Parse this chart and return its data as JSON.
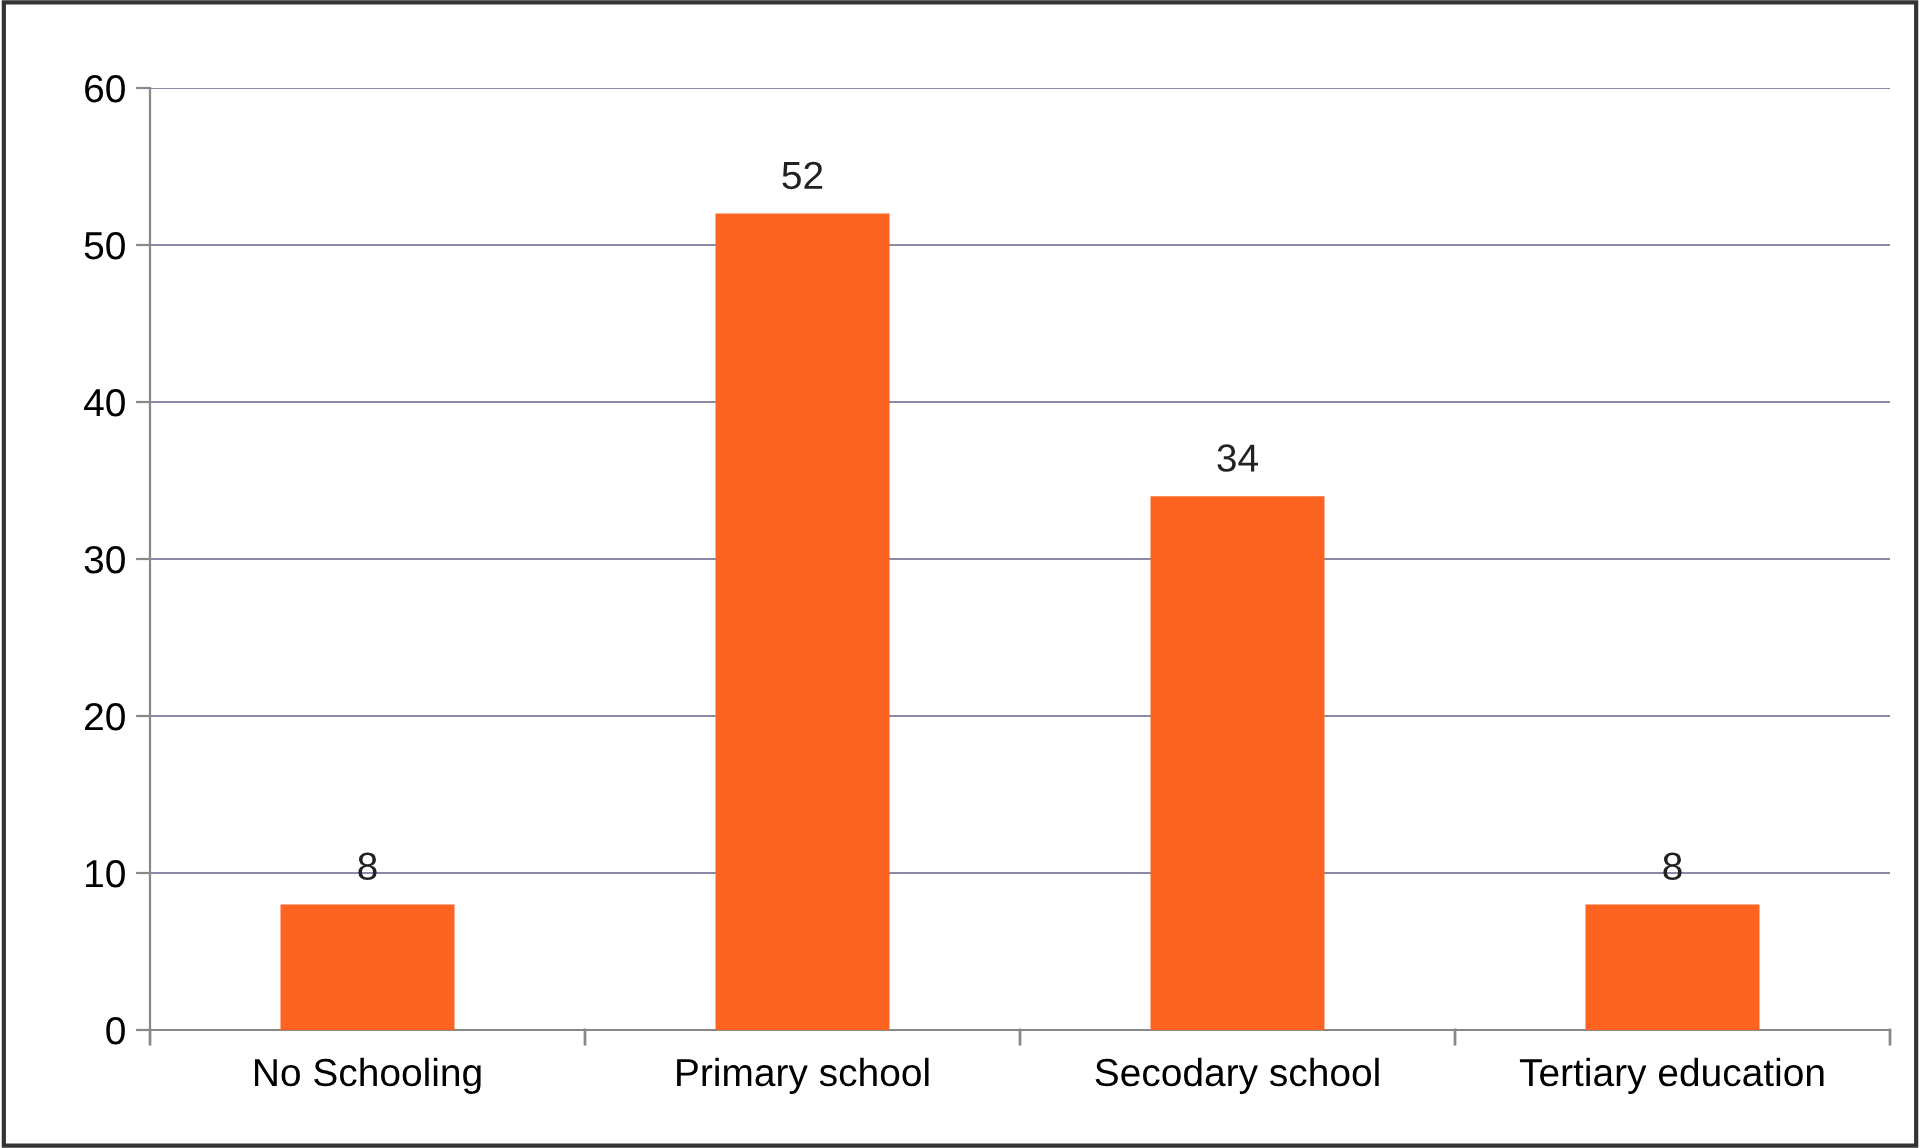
{
  "chart_data": {
    "type": "bar",
    "categories": [
      "No Schooling",
      "Primary school",
      "Secodary school",
      "Tertiary education"
    ],
    "values": [
      8,
      52,
      34,
      8
    ],
    "color": "#fd6321",
    "ylim": [
      0,
      60
    ],
    "yticks": [
      0,
      10,
      20,
      30,
      40,
      50,
      60
    ],
    "grid": "y",
    "data_labels": true
  }
}
